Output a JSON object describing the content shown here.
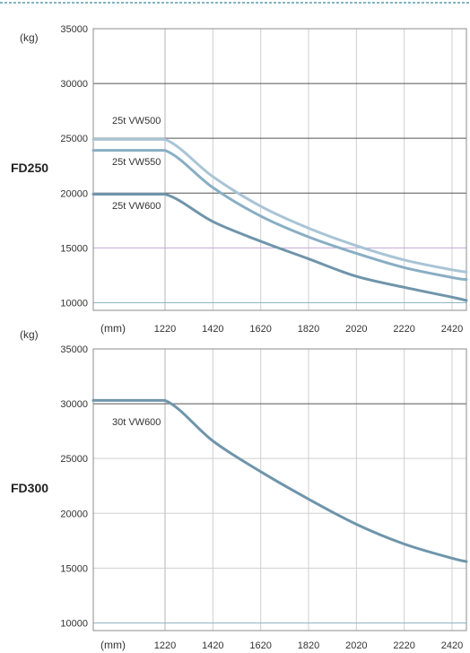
{
  "colors": {
    "border": "#8c8c8c",
    "grid_dark": "#555555",
    "grid_light": "#cfcfcf",
    "grid_purple": "#c6a6d6",
    "grid_teal": "#8fb7c4",
    "top_border_teal": "#5a9bb0",
    "line_light": "#a9c4d6",
    "line_mid": "#89aec4",
    "line_dark": "#6f95ab"
  },
  "chart_data": [
    {
      "type": "line",
      "model_label": "FD250",
      "y_unit": "(kg)",
      "x_unit": "(mm)",
      "xlim": [
        920,
        2480
      ],
      "ylim": [
        9300,
        35000
      ],
      "x_ticks": [
        1220,
        1420,
        1620,
        1820,
        2020,
        2220,
        2420
      ],
      "y_ticks": [
        10000,
        15000,
        20000,
        25000,
        30000,
        35000
      ],
      "series": [
        {
          "name": "25t VW500",
          "color": "#a9c4d6",
          "x": [
            920,
            1220,
            1420,
            1620,
            1820,
            2020,
            2220,
            2420,
            2480
          ],
          "y": [
            24900,
            24900,
            21500,
            18800,
            16800,
            15200,
            13900,
            13000,
            12800
          ]
        },
        {
          "name": "25t VW550",
          "color": "#89aec4",
          "x": [
            920,
            1220,
            1420,
            1620,
            1820,
            2020,
            2220,
            2420,
            2480
          ],
          "y": [
            23900,
            23900,
            20500,
            17900,
            16000,
            14500,
            13200,
            12300,
            12100
          ]
        },
        {
          "name": "25t VW600",
          "color": "#6f95ab",
          "x": [
            920,
            1220,
            1420,
            1620,
            1820,
            2020,
            2220,
            2420,
            2480
          ],
          "y": [
            19900,
            19900,
            17400,
            15600,
            14000,
            12400,
            11400,
            10500,
            10200
          ]
        }
      ]
    },
    {
      "type": "line",
      "model_label": "FD300",
      "y_unit": "(kg)",
      "x_unit": "(mm)",
      "xlim": [
        920,
        2480
      ],
      "ylim": [
        9300,
        35000
      ],
      "x_ticks": [
        1220,
        1420,
        1620,
        1820,
        2020,
        2220,
        2420
      ],
      "y_ticks": [
        10000,
        15000,
        20000,
        25000,
        30000,
        35000
      ],
      "series": [
        {
          "name": "30t VW600",
          "color": "#6f95ab",
          "x": [
            920,
            1220,
            1420,
            1620,
            1820,
            2020,
            2220,
            2420,
            2480
          ],
          "y": [
            30300,
            30300,
            26600,
            23800,
            21300,
            19000,
            17200,
            15900,
            15600
          ]
        }
      ]
    }
  ]
}
